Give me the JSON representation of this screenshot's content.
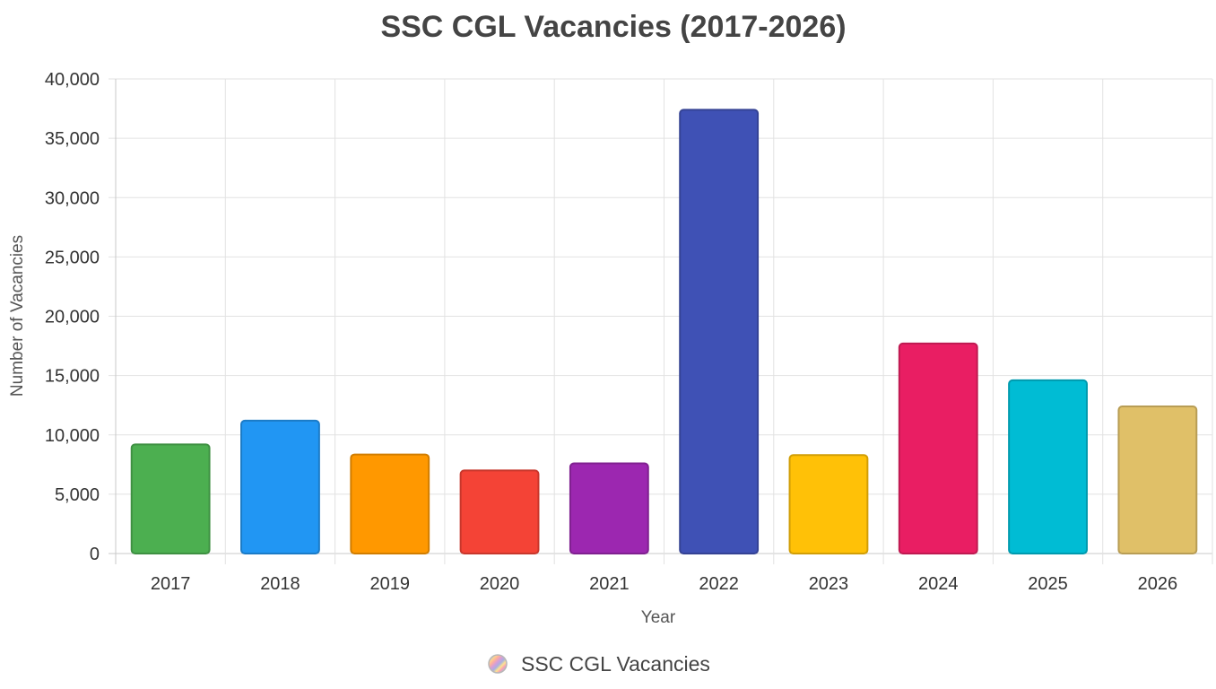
{
  "chart_data": {
    "type": "bar",
    "title": "SSC CGL Vacancies (2017-2026)",
    "xlabel": "Year",
    "ylabel": "Number of Vacancies",
    "categories": [
      "2017",
      "2018",
      "2019",
      "2020",
      "2021",
      "2022",
      "2023",
      "2024",
      "2025",
      "2026"
    ],
    "series": [
      {
        "name": "SSC CGL Vacancies",
        "values": [
          9200,
          11200,
          8350,
          7000,
          7600,
          37400,
          8300,
          17700,
          14600,
          12400
        ]
      }
    ],
    "bar_colors": [
      "#4caf50",
      "#2196f3",
      "#ff9800",
      "#f44336",
      "#9c27b0",
      "#3f51b5",
      "#ffc107",
      "#e91e63",
      "#00bcd4",
      "#e0c068"
    ],
    "ylim": [
      0,
      40000
    ],
    "yticks": [
      0,
      5000,
      10000,
      15000,
      20000,
      25000,
      30000,
      35000,
      40000
    ],
    "ytick_labels": [
      "0",
      "5,000",
      "10,000",
      "15,000",
      "20,000",
      "25,000",
      "30,000",
      "35,000",
      "40,000"
    ],
    "grid": true,
    "legend_position": "bottom"
  }
}
